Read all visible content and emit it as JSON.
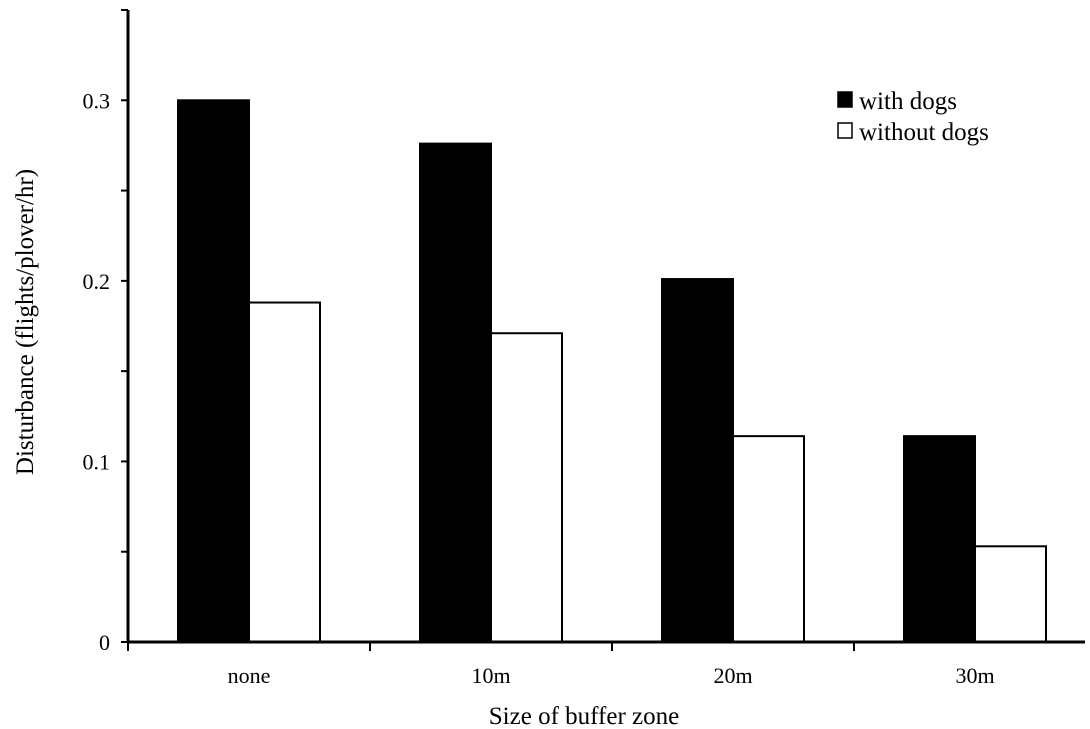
{
  "chart_data": {
    "type": "bar",
    "title": "",
    "xlabel": "Size of buffer zone",
    "ylabel": "Disturbance (flights/plover/hr)",
    "categories": [
      "none",
      "10m",
      "20m",
      "30m"
    ],
    "series": [
      {
        "name": "with dogs",
        "values": [
          0.3,
          0.276,
          0.201,
          0.114
        ],
        "color": "#000000"
      },
      {
        "name": "without dogs",
        "values": [
          0.188,
          0.171,
          0.114,
          0.053
        ],
        "color": "#ffffff"
      }
    ],
    "ylim": [
      0,
      0.35
    ],
    "yticks": [
      0,
      0.1,
      0.2,
      0.3
    ],
    "ytick_labels": [
      "0",
      "0.1",
      "0.2",
      "0.3"
    ],
    "grid": false,
    "legend_position": "top-right"
  }
}
